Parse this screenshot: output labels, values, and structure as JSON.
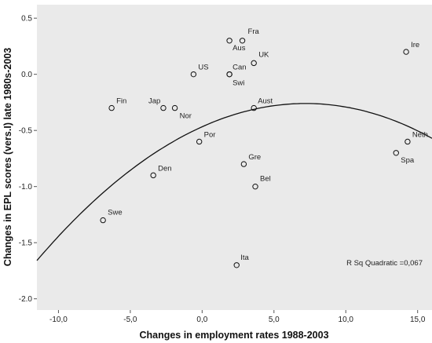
{
  "chart_data": {
    "type": "scatter",
    "xlabel": "Changes in employment rates 1988-2003",
    "ylabel": "Changes in EPL scores (vers.I) late 1980s-2003",
    "xlim": [
      -11.5,
      16.0
    ],
    "ylim": [
      -2.1,
      0.62
    ],
    "x_ticks": [
      -10,
      -5,
      0,
      5,
      10,
      15
    ],
    "x_tick_labels": [
      "-10,0",
      "-5,0",
      "0,0",
      "5,0",
      "10,0",
      "15,0"
    ],
    "y_ticks": [
      0.5,
      0.0,
      -0.5,
      -1.0,
      -1.5,
      -2.0
    ],
    "y_tick_labels": [
      "0.5",
      "0.0",
      "-0.5",
      "-1.0",
      "-1.5",
      "-2.0"
    ],
    "grid": false,
    "points": [
      {
        "label": "Fra",
        "x": 2.8,
        "y": 0.3
      },
      {
        "label": "Aus",
        "x": 1.9,
        "y": 0.3
      },
      {
        "label": "UK",
        "x": 3.6,
        "y": 0.1
      },
      {
        "label": "Can",
        "x": 1.9,
        "y": 0.0
      },
      {
        "label": "US",
        "x": -0.6,
        "y": 0.0
      },
      {
        "label": "Swi",
        "x": 1.9,
        "y": 0.0
      },
      {
        "label": "Ire",
        "x": 14.2,
        "y": 0.2
      },
      {
        "label": "Fin",
        "x": -6.3,
        "y": -0.3
      },
      {
        "label": "Jap",
        "x": -2.7,
        "y": -0.3
      },
      {
        "label": "Nor",
        "x": -1.9,
        "y": -0.3
      },
      {
        "label": "Aust",
        "x": 3.6,
        "y": -0.3
      },
      {
        "label": "Por",
        "x": -0.2,
        "y": -0.6
      },
      {
        "label": "Gre",
        "x": 2.9,
        "y": -0.8
      },
      {
        "label": "Neth",
        "x": 14.3,
        "y": -0.6
      },
      {
        "label": "Spa",
        "x": 13.5,
        "y": -0.7
      },
      {
        "label": "Den",
        "x": -3.4,
        "y": -0.9
      },
      {
        "label": "Bel",
        "x": 3.7,
        "y": -1.0
      },
      {
        "label": "Swe",
        "x": -6.9,
        "y": -1.3
      },
      {
        "label": "Ita",
        "x": 2.4,
        "y": -1.7
      }
    ],
    "fit": {
      "type": "quadratic",
      "vertex_x": 7.2,
      "vertex_y": -0.26,
      "a": -0.004,
      "x_range": [
        -11.5,
        16.0
      ]
    },
    "annotation": "R Sq Quadratic =0,067"
  }
}
